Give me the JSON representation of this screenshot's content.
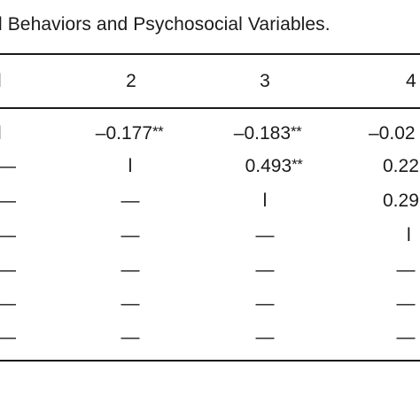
{
  "table": {
    "caption": "l Behaviors and Psychosocial Variables.",
    "header": [
      "l",
      "2",
      "3",
      "4"
    ],
    "rows": [
      {
        "c1": "l",
        "c2": "–0.177",
        "c2_sig": "**",
        "c3": "–0.183",
        "c3_sig": "**",
        "c4": "–0.02"
      },
      {
        "c1": "—",
        "c2": "l",
        "c2_sig": "",
        "c3": "0.493",
        "c3_sig": "**",
        "c4": "0.22"
      },
      {
        "c1": "—",
        "c2": "—",
        "c2_sig": "",
        "c3": "l",
        "c3_sig": "",
        "c4": "0.29"
      },
      {
        "c1": "—",
        "c2": "—",
        "c2_sig": "",
        "c3": "—",
        "c3_sig": "",
        "c4": "l"
      },
      {
        "c1": "—",
        "c2": "—",
        "c2_sig": "",
        "c3": "—",
        "c3_sig": "",
        "c4": "—"
      },
      {
        "c1": "—",
        "c2": "—",
        "c2_sig": "",
        "c3": "—",
        "c3_sig": "",
        "c4": "—"
      },
      {
        "c1": "—",
        "c2": "—",
        "c2_sig": "",
        "c3": "—",
        "c3_sig": "",
        "c4": "—"
      }
    ]
  }
}
